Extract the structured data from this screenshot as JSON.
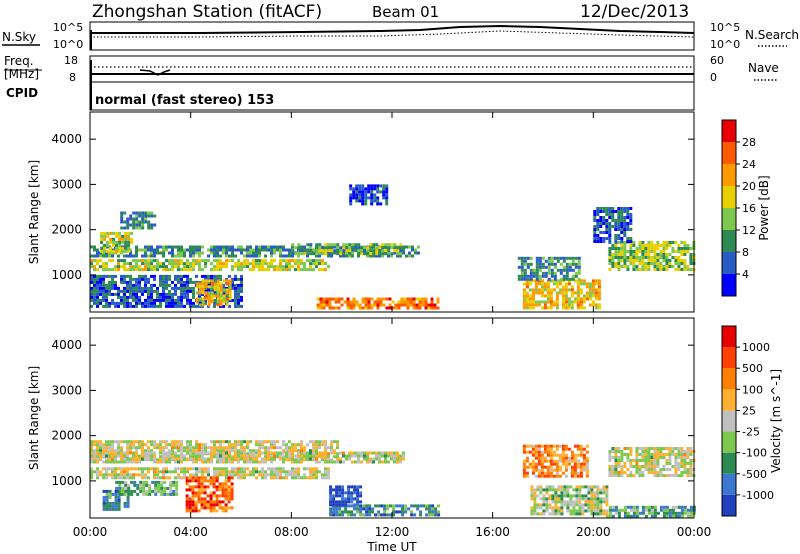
{
  "header": {
    "station": "Zhongshan Station (fitACF)",
    "beam": "Beam 01",
    "date": "12/Dec/2013"
  },
  "noise_panel": {
    "left_label": "N.Sky",
    "right_label": "N.Search",
    "left_ticks": [
      "10^5",
      "10^0"
    ],
    "right_ticks": [
      "10^5",
      "10^0"
    ]
  },
  "freq_panel": {
    "left_label_line1": "Freq.",
    "left_label_line2": "[MHz]",
    "right_label": "Nave",
    "left_ticks": [
      "18",
      "8"
    ],
    "right_ticks": [
      "60",
      "0"
    ]
  },
  "cpid": {
    "label": "CPID",
    "text": "normal (fast stereo) 153"
  },
  "x_axis": {
    "label": "Time UT",
    "ticks": [
      "00:00",
      "04:00",
      "08:00",
      "12:00",
      "16:00",
      "20:00",
      "00:00"
    ]
  },
  "chart_data": [
    {
      "type": "heatmap",
      "title": "",
      "xlabel": "Time UT",
      "ylabel": "Slant Range [km]",
      "x_ticks_hours": [
        0,
        4,
        8,
        12,
        16,
        20,
        24
      ],
      "y_ticks": [
        1000,
        2000,
        3000,
        4000
      ],
      "ylim": [
        180,
        4600
      ],
      "colorbar": {
        "label": "Power [dB]",
        "ticks": [
          "4",
          "8",
          "12",
          "16",
          "20",
          "24",
          "28"
        ],
        "colors": [
          "#0000ff",
          "#2a5cc8",
          "#2d8a55",
          "#7ec850",
          "#e8d000",
          "#ff9900",
          "#ff5a00",
          "#e80000"
        ]
      },
      "regions": [
        {
          "t0": 0.0,
          "t1": 9.5,
          "r0": 1150,
          "r1": 1350,
          "level": 0.5
        },
        {
          "t0": 0.0,
          "t1": 13.0,
          "r0": 1400,
          "r1": 1650,
          "level": 0.3
        },
        {
          "t0": 0.4,
          "t1": 1.6,
          "r0": 1500,
          "r1": 1950,
          "level": 0.5
        },
        {
          "t0": 1.2,
          "t1": 2.6,
          "r0": 2050,
          "r1": 2400,
          "level": 0.3
        },
        {
          "t0": 0.0,
          "t1": 6.0,
          "r0": 300,
          "r1": 1000,
          "level": 0.2
        },
        {
          "t0": 4.2,
          "t1": 5.6,
          "r0": 350,
          "r1": 900,
          "level": 0.6
        },
        {
          "t0": 8.0,
          "t1": 12.3,
          "r0": 1450,
          "r1": 1700,
          "level": 0.4
        },
        {
          "t0": 9.0,
          "t1": 13.8,
          "r0": 250,
          "r1": 500,
          "level": 0.75
        },
        {
          "t0": 17.2,
          "t1": 20.2,
          "r0": 300,
          "r1": 900,
          "level": 0.6
        },
        {
          "t0": 17.0,
          "t1": 19.5,
          "r0": 900,
          "r1": 1400,
          "level": 0.3
        },
        {
          "t0": 20.6,
          "t1": 24.0,
          "r0": 1100,
          "r1": 1750,
          "level": 0.45
        },
        {
          "t0": 20.0,
          "t1": 21.5,
          "r0": 1750,
          "r1": 2500,
          "level": 0.2
        },
        {
          "t0": 10.3,
          "t1": 11.8,
          "r0": 2600,
          "r1": 3000,
          "level": 0.15
        }
      ]
    },
    {
      "type": "heatmap",
      "title": "",
      "xlabel": "Time UT",
      "ylabel": "Slant Range [km]",
      "x_ticks_hours": [
        0,
        4,
        8,
        12,
        16,
        20,
        24
      ],
      "y_ticks": [
        1000,
        2000,
        3000,
        4000
      ],
      "ylim": [
        180,
        4600
      ],
      "colorbar": {
        "label": "Velocity [m s^-1]",
        "ticks": [
          "1000",
          "500",
          "100",
          "25",
          "-25",
          "-100",
          "-500",
          "-1000"
        ],
        "colors": [
          "#2040c0",
          "#3c78d0",
          "#2d8a55",
          "#7ec850",
          "#c0c0c0",
          "#ffb030",
          "#ff8000",
          "#ff4000",
          "#e80000"
        ]
      },
      "regions": [
        {
          "t0": 0.0,
          "t1": 9.8,
          "r0": 1450,
          "r1": 1900,
          "level": 0.5
        },
        {
          "t0": 0.0,
          "t1": 9.5,
          "r0": 1100,
          "r1": 1300,
          "level": 0.5
        },
        {
          "t0": 0.0,
          "t1": 12.5,
          "r0": 1400,
          "r1": 1650,
          "level": 0.5
        },
        {
          "t0": 1.0,
          "t1": 3.5,
          "r0": 700,
          "r1": 1000,
          "level": 0.35
        },
        {
          "t0": 3.8,
          "t1": 5.6,
          "r0": 350,
          "r1": 1100,
          "level": 0.8
        },
        {
          "t0": 0.5,
          "t1": 1.5,
          "r0": 400,
          "r1": 800,
          "level": 0.2
        },
        {
          "t0": 9.5,
          "t1": 13.8,
          "r0": 250,
          "r1": 480,
          "level": 0.25
        },
        {
          "t0": 9.5,
          "t1": 10.8,
          "r0": 500,
          "r1": 900,
          "level": 0.05
        },
        {
          "t0": 17.5,
          "t1": 20.5,
          "r0": 250,
          "r1": 900,
          "level": 0.45
        },
        {
          "t0": 17.2,
          "t1": 19.8,
          "r0": 1100,
          "r1": 1800,
          "level": 0.7
        },
        {
          "t0": 20.6,
          "t1": 24.0,
          "r0": 1100,
          "r1": 1750,
          "level": 0.5
        },
        {
          "t0": 20.5,
          "t1": 24.0,
          "r0": 250,
          "r1": 450,
          "level": 0.3
        }
      ]
    }
  ]
}
